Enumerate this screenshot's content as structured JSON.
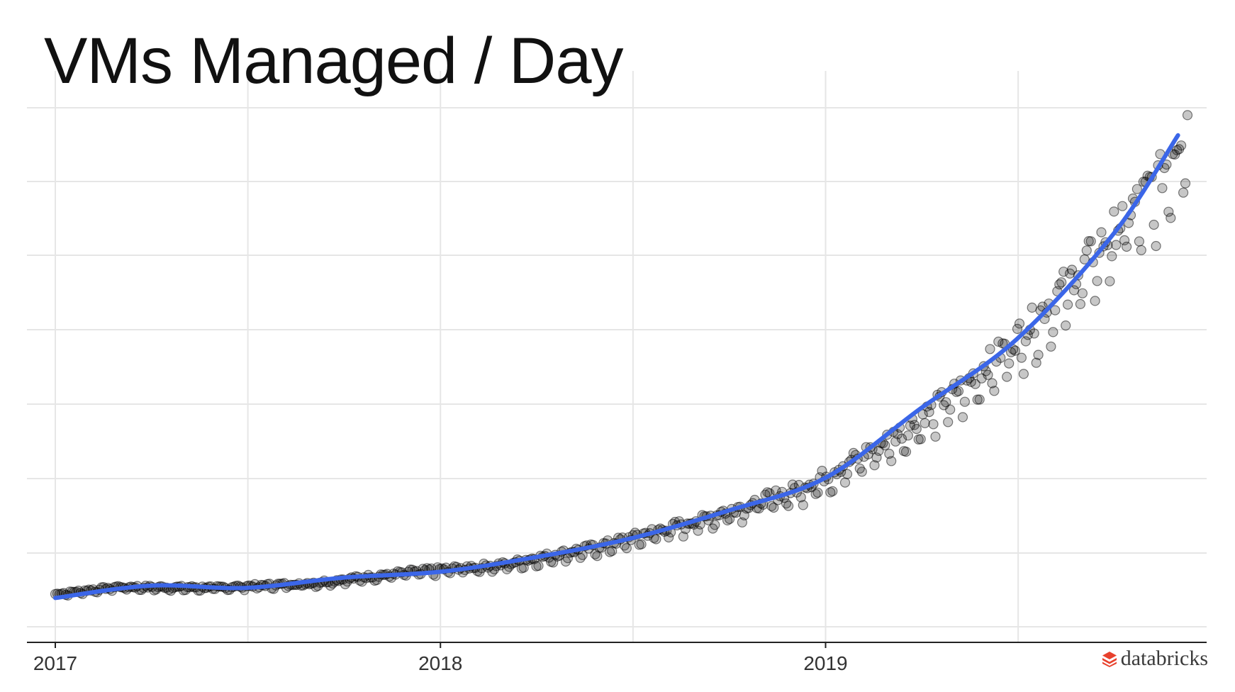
{
  "title": "VMs Managed / Day",
  "brand": {
    "name": "databricks",
    "logo_icon": "databricks-stack-icon",
    "logo_color": "#e8412d"
  },
  "colors": {
    "trend": "#3b66e8",
    "points": "#000000",
    "grid": "#e6e6e6",
    "axis": "#222222"
  },
  "chart_data": {
    "type": "scatter",
    "title": "VMs Managed / Day",
    "xlabel": "",
    "ylabel": "",
    "x_ticks": [
      "2017",
      "2018",
      "2019"
    ],
    "x_range": [
      "2017-01-01",
      "2019-12-10"
    ],
    "y_tick_labels_shown": false,
    "y_range": [
      0,
      7.2
    ],
    "grid": true,
    "legend": "none",
    "trend": {
      "type": "smooth",
      "points": [
        [
          "2017-01-01",
          0.2
        ],
        [
          "2017-04-01",
          0.37
        ],
        [
          "2017-07-01",
          0.34
        ],
        [
          "2017-10-01",
          0.48
        ],
        [
          "2018-01-01",
          0.56
        ],
        [
          "2018-04-01",
          0.76
        ],
        [
          "2018-07-01",
          1.02
        ],
        [
          "2018-10-01",
          1.4
        ],
        [
          "2019-01-01",
          1.85
        ],
        [
          "2019-04-01",
          2.8
        ],
        [
          "2019-07-01",
          3.75
        ],
        [
          "2019-10-01",
          5.2
        ],
        [
          "2019-12-01",
          6.55
        ]
      ]
    },
    "anchors": [
      [
        "2017-01-01",
        0.25
      ],
      [
        "2017-03-01",
        0.35
      ],
      [
        "2017-06-01",
        0.34
      ],
      [
        "2017-09-01",
        0.4
      ],
      [
        "2017-12-01",
        0.55
      ],
      [
        "2018-03-01",
        0.65
      ],
      [
        "2018-06-01",
        0.9
      ],
      [
        "2018-09-01",
        1.25
      ],
      [
        "2018-12-01",
        1.65
      ],
      [
        "2019-01-01",
        1.85
      ],
      [
        "2019-03-15",
        2.45
      ],
      [
        "2019-05-15",
        3.1
      ],
      [
        "2019-07-15",
        3.9
      ],
      [
        "2019-09-15",
        4.9
      ],
      [
        "2019-11-15",
        5.9
      ],
      [
        "2019-12-10",
        6.7
      ]
    ],
    "spread": 0.05,
    "point_count": 540
  }
}
